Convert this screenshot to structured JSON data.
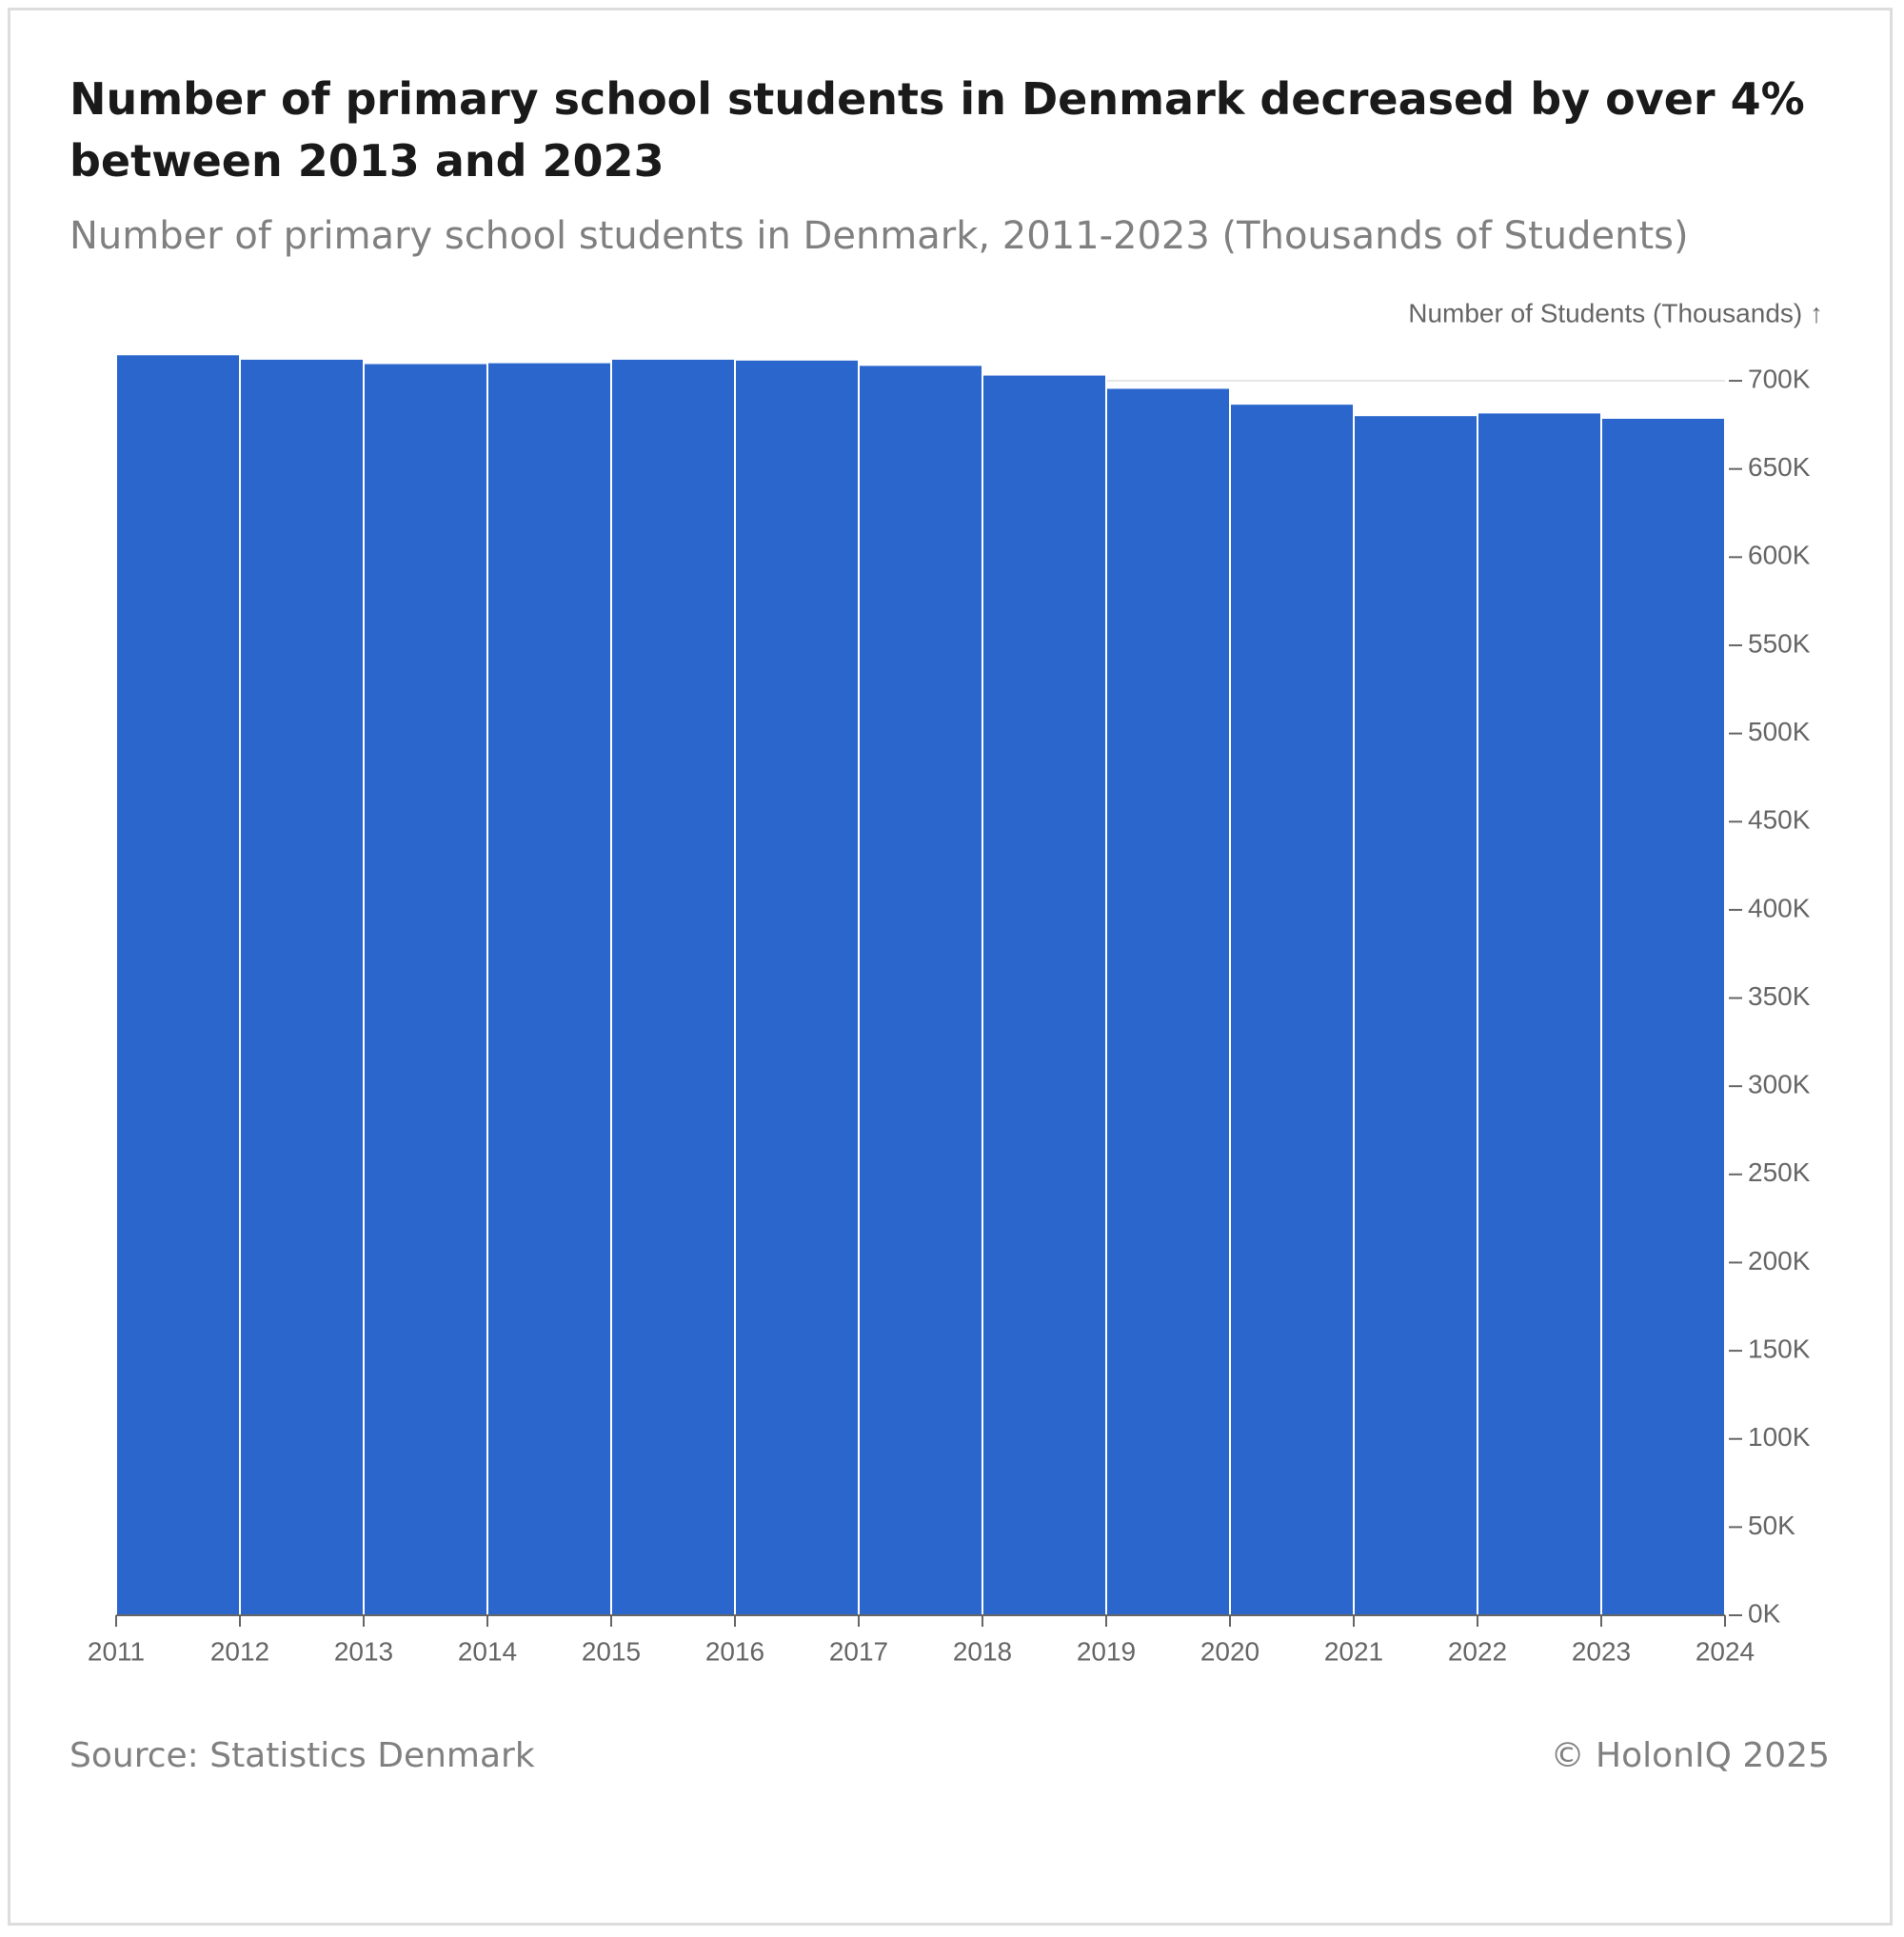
{
  "chart_data": {
    "type": "histogram",
    "title": "Number of primary school students in Denmark decreased by over 4% between 2013 and 2023",
    "subtitle": "Number of primary school students in Denmark, 2011-2023 (Thousands of Students)",
    "ylabel": "Number of Students (Thousands) ↑",
    "source": "Source: Statistics Denmark",
    "copyright": "© HolonIQ 2025",
    "bins": [
      2011,
      2012,
      2013,
      2014,
      2015,
      2016,
      2017,
      2018,
      2019,
      2020,
      2021,
      2022,
      2023,
      2024
    ],
    "values": [
      715000,
      712500,
      710000,
      710500,
      712500,
      712000,
      709000,
      703500,
      696000,
      687000,
      680500,
      682000,
      679000
    ],
    "color": "#2b66cd",
    "xlim": [
      2011,
      2024
    ],
    "xticks": [
      2011,
      2012,
      2013,
      2014,
      2015,
      2016,
      2017,
      2018,
      2019,
      2020,
      2021,
      2022,
      2023,
      2024
    ],
    "ylim": [
      0,
      720000
    ],
    "yticks": [
      {
        "value": 0,
        "label": "0K"
      },
      {
        "value": 50000,
        "label": "50K"
      },
      {
        "value": 100000,
        "label": "100K"
      },
      {
        "value": 150000,
        "label": "150K"
      },
      {
        "value": 200000,
        "label": "200K"
      },
      {
        "value": 250000,
        "label": "250K"
      },
      {
        "value": 300000,
        "label": "300K"
      },
      {
        "value": 350000,
        "label": "350K"
      },
      {
        "value": 400000,
        "label": "400K"
      },
      {
        "value": 450000,
        "label": "450K"
      },
      {
        "value": 500000,
        "label": "500K"
      },
      {
        "value": 550000,
        "label": "550K"
      },
      {
        "value": 600000,
        "label": "600K"
      },
      {
        "value": 650000,
        "label": "650K"
      },
      {
        "value": 700000,
        "label": "700K"
      }
    ],
    "grid": true,
    "y_axis_side": "right"
  }
}
